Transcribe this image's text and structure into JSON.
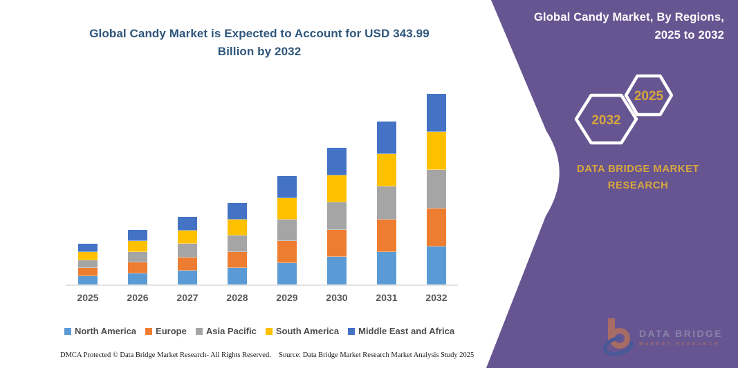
{
  "header": {
    "chart_title_line1": "Global Candy Market is Expected to Account for USD 343.99",
    "chart_title_line2": "Billion by 2032",
    "title_color": "#2E567B"
  },
  "side_panel": {
    "background_color": "#665591",
    "heading_line1": "Global Candy Market, By Regions,",
    "heading_line2": "2025 to 2032",
    "hexagon_back_label": "2032",
    "hexagon_front_label": "2025",
    "hexagon_label_color": "#D7A63F",
    "brand_line1": "DATA BRIDGE MARKET",
    "brand_line2": "RESEARCH",
    "brand_color": "#D7A63F",
    "logo": {
      "name": "DATA BRIDGE",
      "tagline": "MARKET RESEARCH"
    }
  },
  "footer": {
    "dmca_text": "DMCA Protected © Data Bridge Market Research-  All Rights Reserved.",
    "source_text": "Source: Data Bridge Market Research  Market Analysis Study 2025"
  },
  "chart_data": {
    "type": "bar",
    "stacked": true,
    "unit": "USD Billion",
    "title": "Global Candy Market, By Regions, 2025 to 2032",
    "categories": [
      "2025",
      "2026",
      "2027",
      "2028",
      "2029",
      "2030",
      "2031",
      "2032"
    ],
    "series": [
      {
        "name": "North America",
        "color": "#5B9BD5",
        "values": [
          14.7,
          19.7,
          24.4,
          29.4,
          39.1,
          49.4,
          58.8,
          68.8
        ]
      },
      {
        "name": "Europe",
        "color": "#ED7D31",
        "values": [
          14.7,
          19.7,
          24.4,
          29.4,
          39.1,
          49.4,
          58.8,
          68.8
        ]
      },
      {
        "name": "Asia Pacific",
        "color": "#A5A5A5",
        "values": [
          14.7,
          19.7,
          24.4,
          29.4,
          39.1,
          49.4,
          58.8,
          68.8
        ]
      },
      {
        "name": "South America",
        "color": "#FFC000",
        "values": [
          14.7,
          19.7,
          24.4,
          29.4,
          39.1,
          49.4,
          58.8,
          68.8
        ]
      },
      {
        "name": "Middle East and Africa",
        "color": "#4472C4",
        "values": [
          14.7,
          19.7,
          24.4,
          29.4,
          39.1,
          49.4,
          58.8,
          68.8
        ]
      }
    ],
    "totals": [
      73.5,
      98.5,
      122.0,
      147.0,
      195.5,
      247.0,
      294.0,
      344.0
    ],
    "ylim": [
      0,
      345
    ],
    "grid": false,
    "legend_position": "bottom",
    "axis_label_color": "#595959"
  }
}
